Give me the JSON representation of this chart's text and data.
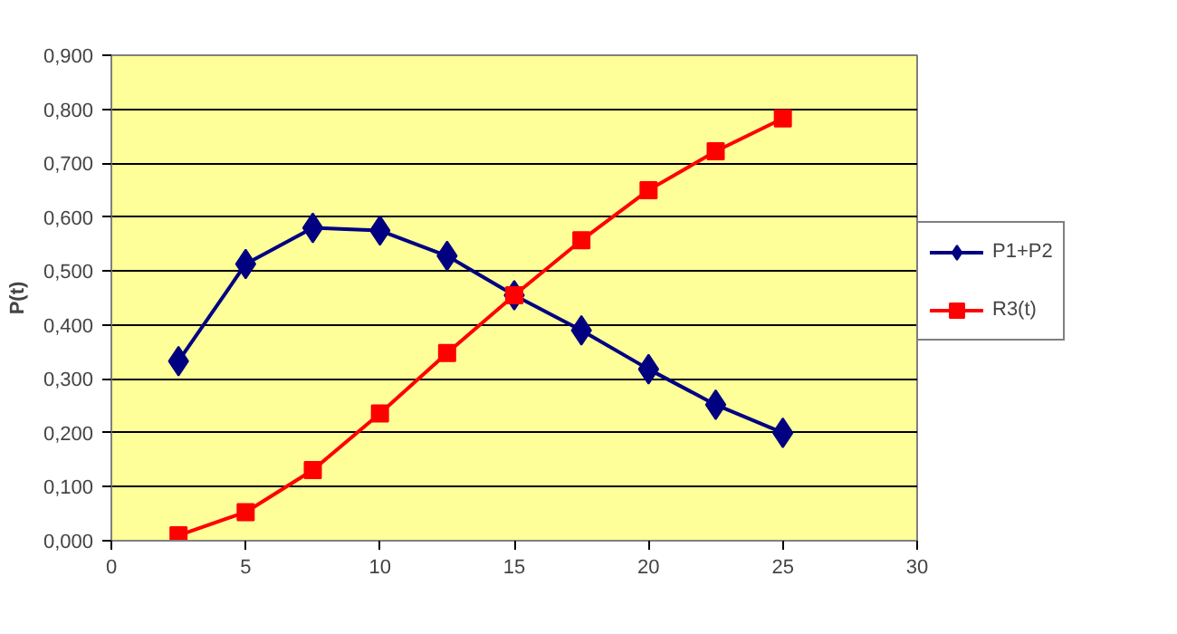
{
  "chart_data": {
    "type": "line",
    "ylabel": "P(t)",
    "x": [
      2.5,
      5,
      7.5,
      10,
      12.5,
      15,
      17.5,
      20,
      22.5,
      25
    ],
    "series": [
      {
        "name": "P1+P2",
        "color": "#000080",
        "marker": "diamond",
        "values": [
          0.333,
          0.513,
          0.58,
          0.575,
          0.528,
          0.455,
          0.39,
          0.318,
          0.252,
          0.2
        ]
      },
      {
        "name": "R3(t)",
        "color": "#ff0000",
        "marker": "square",
        "values": [
          0.01,
          0.053,
          0.131,
          0.236,
          0.348,
          0.455,
          0.557,
          0.65,
          0.722,
          0.783
        ]
      }
    ],
    "xlim": [
      0,
      30
    ],
    "xticks": [
      0,
      5,
      10,
      15,
      20,
      25,
      30
    ],
    "ylim": [
      0,
      0.9
    ],
    "yticks": [
      {
        "value": 0,
        "label": "0,000"
      },
      {
        "value": 0.1,
        "label": "0,100"
      },
      {
        "value": 0.2,
        "label": "0,200"
      },
      {
        "value": 0.3,
        "label": "0,300"
      },
      {
        "value": 0.4,
        "label": "0,400"
      },
      {
        "value": 0.5,
        "label": "0,500"
      },
      {
        "value": 0.6,
        "label": "0,600"
      },
      {
        "value": 0.7,
        "label": "0,700"
      },
      {
        "value": 0.8,
        "label": "0,800"
      },
      {
        "value": 0.9,
        "label": "0,900"
      }
    ],
    "grid": "y",
    "legend": "right"
  }
}
